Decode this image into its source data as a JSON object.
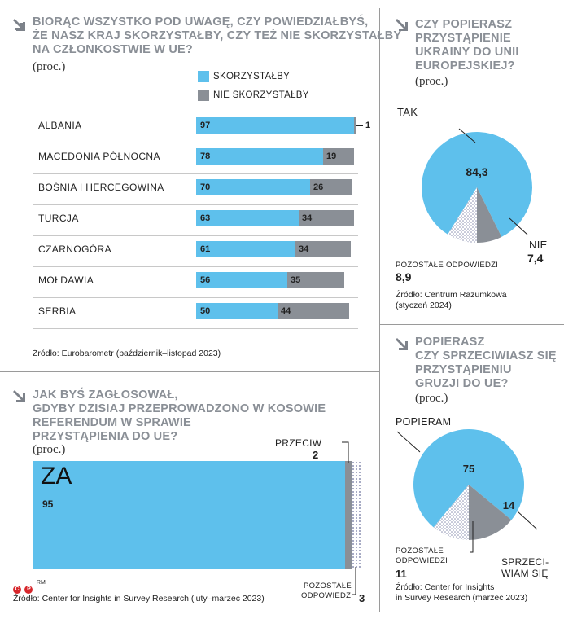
{
  "colors": {
    "blue": "#5ec0ec",
    "gray": "#8a8f96",
    "dots": "#8a8fb0",
    "title": "#8a8f96"
  },
  "panel1": {
    "title_lines": [
      "BIORĄC WSZYSTKO POD UWAGĘ, CZY POWIEDZIAŁBYŚ,",
      "ŻE NASZ KRAJ SKORZYSTAŁBY, CZY TEŻ NIE SKORZYSTAŁBY",
      "NA CZŁONKOSTWIE W UE?"
    ],
    "unit": "(proc.)",
    "legend": [
      "SKORZYSTAŁBY",
      "NIE SKORZYSTAŁBY"
    ],
    "source": "Źródło: Eurobarometr (październik–listopad 2023)"
  },
  "panel2": {
    "title_lines": [
      "CZY POPIERASZ",
      "PRZYSTĄPIENIE",
      "UKRAINY DO UNII",
      "EUROPEJSKIEJ?"
    ],
    "unit": "(proc.)",
    "labels": {
      "yes": "TAK",
      "no": "NIE",
      "other": "POZOSTAŁE ODPOWIEDZI"
    },
    "source_lines": [
      "Źródło: Centrum Razumkowa",
      "(styczeń 2024)"
    ]
  },
  "panel3": {
    "title_lines": [
      "JAK BYŚ ZAGŁOSOWAŁ,",
      "GDYBY DZISIAJ PRZEPROWADZONO W KOSOWIE",
      "REFERENDUM W SPRAWIE",
      "PRZYSTĄPIENIA DO UE?"
    ],
    "unit": "(proc.)",
    "labels": {
      "for": "ZA",
      "against": "PRZECIW",
      "other_lines": [
        "POZOSTAŁE",
        "ODPOWIEDZI"
      ]
    },
    "source": "Źródło: Center for Insights in Survey Research (luty–marzec 2023)",
    "credit": "RM"
  },
  "panel4": {
    "title_lines": [
      "POPIERASZ",
      "CZY SPRZECIWIASZ SIĘ",
      "PRZYSTĄPIENIU",
      "GRUZJI DO UE?"
    ],
    "unit": "(proc.)",
    "labels": {
      "support": "POPIERAM",
      "oppose_lines": [
        "SPRZECI-",
        "WIAM SIĘ"
      ],
      "other_lines": [
        "POZOSTAŁE",
        "ODPOWIEDZI"
      ]
    },
    "source_lines": [
      "Źródło: Center for Insights",
      "in Survey Research (marzec 2023)"
    ]
  },
  "chart_data": [
    {
      "type": "bar",
      "orientation": "horizontal",
      "stacked": true,
      "title": "BIORĄC WSZYSTKO POD UWAGĘ, CZY POWIEDZIAŁBYŚ, ŻE NASZ KRAJ SKORZYSTAŁBY, CZY TEŻ NIE SKORZYSTAŁBY NA CZŁONKOSTWIE W UE?",
      "unit": "(proc.)",
      "categories": [
        "ALBANIA",
        "MACEDONIA PÓŁNOCNA",
        "BOŚNIA I HERCEGOWINA",
        "TURCJA",
        "CZARNOGÓRA",
        "MOŁDAWIA",
        "SERBIA"
      ],
      "series": [
        {
          "name": "SKORZYSTAŁBY",
          "values": [
            97,
            78,
            70,
            63,
            61,
            56,
            50
          ]
        },
        {
          "name": "NIE SKORZYSTAŁBY",
          "values": [
            1,
            19,
            26,
            34,
            34,
            35,
            44
          ]
        }
      ],
      "legend": "top"
    },
    {
      "type": "pie",
      "title": "CZY POPIERASZ PRZYSTĄPIENIE UKRAINY DO UNII EUROPEJSKIEJ?",
      "slices": [
        {
          "label": "TAK",
          "value": 84.3,
          "value_label": "84,3"
        },
        {
          "label": "NIE",
          "value": 7.4,
          "value_label": "7,4"
        },
        {
          "label": "POZOSTAŁE ODPOWIEDZI",
          "value": 8.9,
          "value_label": "8,9"
        }
      ]
    },
    {
      "type": "bar",
      "stacked": true,
      "title": "JAK BYŚ ZAGŁOSOWAŁ, GDYBY DZISIAJ PRZEPROWADZONO W KOSOWIE REFERENDUM W SPRAWIE PRZYSTĄPIENIA DO UE?",
      "segments": [
        {
          "label": "ZA",
          "value": 95
        },
        {
          "label": "PRZECIW",
          "value": 2
        },
        {
          "label": "POZOSTAŁE ODPOWIEDZI",
          "value": 3
        }
      ]
    },
    {
      "type": "pie",
      "title": "POPIERASZ CZY SPRZECIWIASZ SIĘ PRZYSTĄPIENIU GRUZJI DO UE?",
      "slices": [
        {
          "label": "POPIERAM",
          "value": 75,
          "value_label": "75"
        },
        {
          "label": "SPRZECIWIAM SIĘ",
          "value": 14,
          "value_label": "14"
        },
        {
          "label": "POZOSTAŁE ODPOWIEDZI",
          "value": 11,
          "value_label": "11"
        }
      ]
    }
  ]
}
